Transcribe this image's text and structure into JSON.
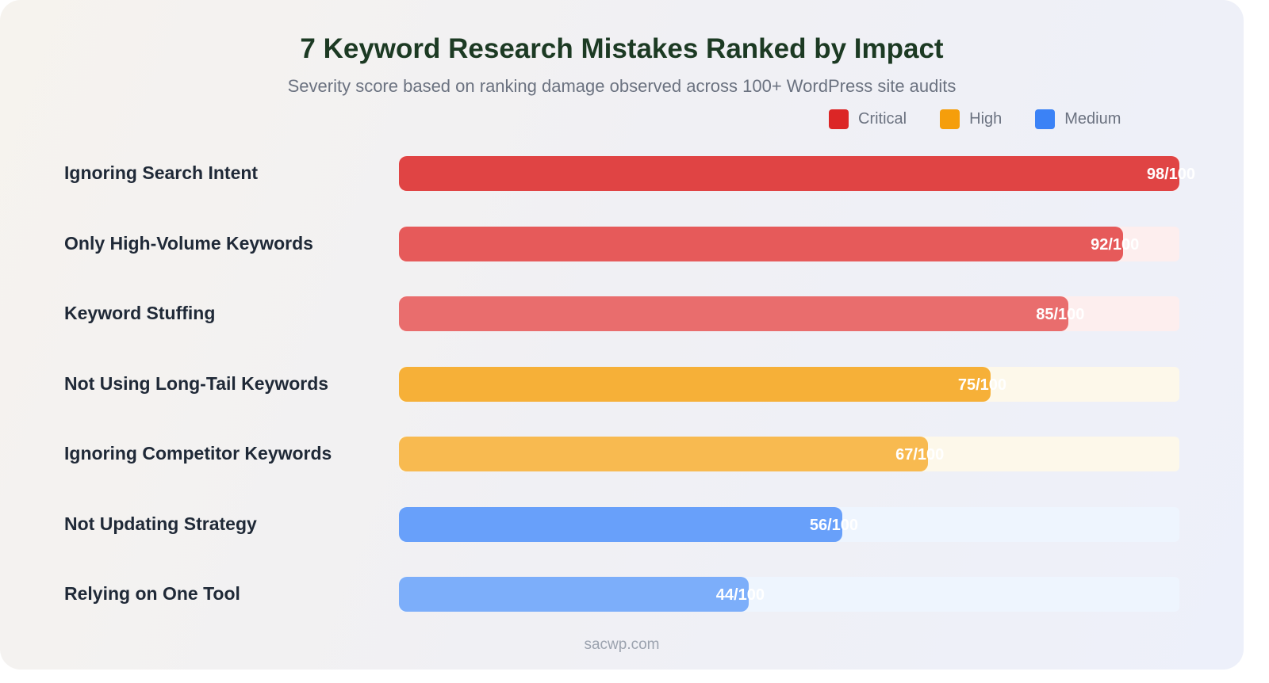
{
  "chart_data": {
    "type": "bar",
    "orientation": "horizontal",
    "title": "7 Keyword Research Mistakes Ranked by Impact",
    "subtitle": "Severity score based on ranking damage observed across 100+ WordPress site audits",
    "xlim": [
      0,
      100
    ],
    "grid": false,
    "legend_placement": "top-right",
    "legend": [
      {
        "label": "Critical",
        "color": "#dc2626"
      },
      {
        "label": "High",
        "color": "#f59e0b"
      },
      {
        "label": "Medium",
        "color": "#3b82f6"
      }
    ],
    "categories": [
      "Ignoring Search Intent",
      "Only High-Volume Keywords",
      "Keyword Stuffing",
      "Not Using Long-Tail Keywords",
      "Ignoring Competitor Keywords",
      "Not Updating Strategy",
      "Relying on One Tool"
    ],
    "values": [
      98,
      92,
      85,
      75,
      67,
      56,
      44
    ],
    "value_labels": [
      "98/100",
      "92/100",
      "85/100",
      "75/100",
      "67/100",
      "56/100",
      "44/100"
    ],
    "severity": [
      "Critical",
      "Critical",
      "Critical",
      "High",
      "High",
      "Medium",
      "Medium"
    ],
    "bar_colors": [
      "#e04444",
      "#e65a5a",
      "#e96d6d",
      "#f6b038",
      "#f8ba50",
      "#68a0fa",
      "#7caefa"
    ],
    "track_colors": [
      "#fdeeee",
      "#fdeeee",
      "#fdeeee",
      "#fdf8ea",
      "#fdf8ea",
      "#eef5fe",
      "#eef5fe"
    ]
  },
  "footer": "sacwp.com"
}
